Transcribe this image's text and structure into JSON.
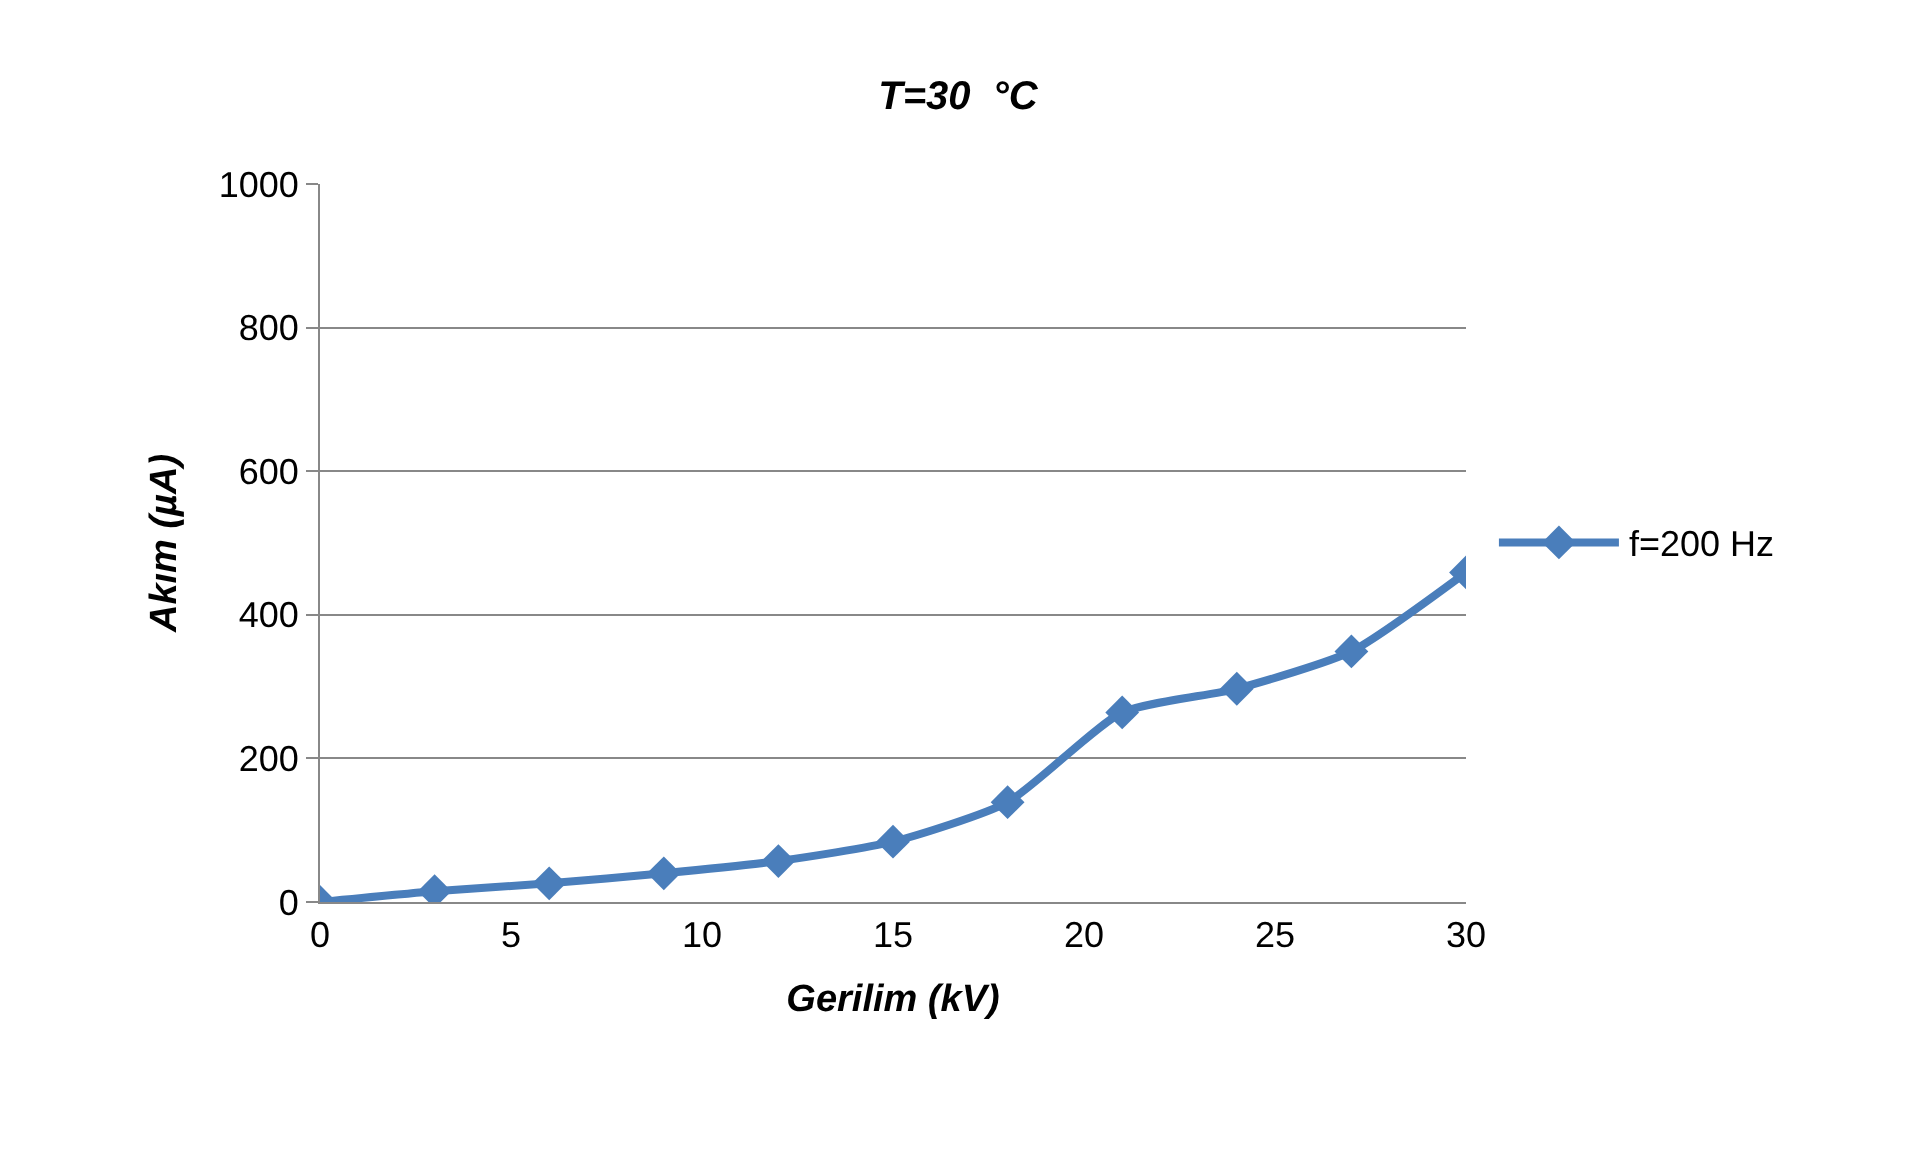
{
  "chart_data": {
    "type": "line",
    "title": "T=30  °C",
    "xlabel": "Gerilim (kV)",
    "ylabel": "Akım (µA)",
    "x": [
      0,
      3,
      6,
      9,
      12,
      15,
      18,
      21,
      24,
      27,
      30
    ],
    "series": [
      {
        "name": "f=200 Hz",
        "color": "#4a7ebb",
        "values": [
          0,
          15,
          26,
          40,
          57,
          84,
          139,
          264,
          297,
          349,
          459
        ]
      }
    ],
    "xlim": [
      0,
      30
    ],
    "xticks": [
      0,
      5,
      10,
      15,
      20,
      25,
      30
    ],
    "ylim": [
      0,
      1000
    ],
    "yticks": [
      0,
      200,
      400,
      600,
      800,
      1000
    ],
    "grid": "y",
    "legend": "right",
    "marker": "diamond",
    "line_style": "solid"
  }
}
